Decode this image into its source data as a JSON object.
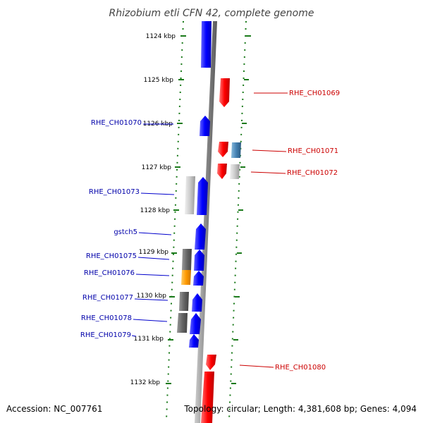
{
  "title": "Rhizobium etli CFN 42, complete genome",
  "ticks": [
    "1124 kbp",
    "1125 kbp",
    "1126 kbp",
    "1127 kbp",
    "1128 kbp",
    "1129 kbp",
    "1130 kbp",
    "1131 kbp",
    "1132 kbp"
  ],
  "left_labels": [
    "RHE_CH01070",
    "RHE_CH01073",
    "gstch5",
    "RHE_CH01075",
    "RHE_CH01076",
    "RHE_CH01077",
    "RHE_CH01078",
    "RHE_CH01079"
  ],
  "right_labels": [
    "RHE_CH01069",
    "RHE_CH01071",
    "RHE_CH01072",
    "RHE_CH01080"
  ],
  "footer": {
    "accession": "Accession: NC_007761",
    "stats": "Topology: circular; Length: 4,381,608 bp; Genes: 4,094"
  },
  "colors": {
    "forward_gene": "#0000ff",
    "reverse_gene": "#ff0000",
    "backbone": "#888888",
    "ticks": "#1a7a1a",
    "label_left": "#0000aa",
    "label_right": "#cc0000"
  }
}
